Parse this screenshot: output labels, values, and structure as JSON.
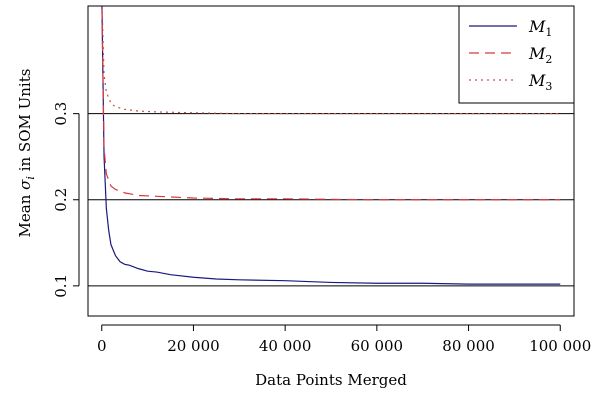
{
  "chart_data": {
    "type": "line",
    "title": "",
    "xlabel": "Data Points Merged",
    "ylabel": "Mean σ_i in SOM Units",
    "ylabel_parts": {
      "pre": "Mean ",
      "sym": "σ",
      "sub": "i",
      "post": " in SOM Units"
    },
    "xlim": [
      -3000,
      103000
    ],
    "ylim": [
      0.065,
      0.425
    ],
    "xticks": [
      0,
      20000,
      40000,
      60000,
      80000,
      100000
    ],
    "xtick_labels": [
      "0",
      "20 000",
      "40 000",
      "60 000",
      "80 000",
      "100 000"
    ],
    "yticks": [
      0.1,
      0.2,
      0.3
    ],
    "ytick_labels": [
      "0.1",
      "0.2",
      "0.3"
    ],
    "hlines": [
      0.1,
      0.2,
      0.3
    ],
    "grid": false,
    "legend_position": "top-right",
    "series": [
      {
        "name": "M1",
        "legend_symbol": "M",
        "legend_subscript": "1",
        "color": "#1a1a80",
        "dash": "solid",
        "x": [
          0,
          500,
          1000,
          1500,
          2000,
          3000,
          4000,
          5000,
          6000,
          8000,
          10000,
          12000,
          15000,
          20000,
          25000,
          30000,
          40000,
          50000,
          60000,
          70000,
          80000,
          90000,
          100000
        ],
        "y": [
          0.44,
          0.25,
          0.19,
          0.165,
          0.148,
          0.135,
          0.128,
          0.125,
          0.124,
          0.12,
          0.117,
          0.116,
          0.113,
          0.11,
          0.108,
          0.107,
          0.106,
          0.104,
          0.103,
          0.103,
          0.102,
          0.102,
          0.102
        ]
      },
      {
        "name": "M2",
        "legend_symbol": "M",
        "legend_subscript": "2",
        "color": "#d9383a",
        "dash": "10,6",
        "x": [
          0,
          500,
          1000,
          2000,
          3000,
          5000,
          8000,
          12000,
          20000,
          30000,
          40000,
          60000,
          80000,
          100000
        ],
        "y": [
          0.44,
          0.26,
          0.23,
          0.216,
          0.212,
          0.208,
          0.205,
          0.204,
          0.202,
          0.201,
          0.201,
          0.2,
          0.2,
          0.2
        ]
      },
      {
        "name": "M3",
        "legend_symbol": "M",
        "legend_subscript": "3",
        "color": "#c0504d",
        "dash": "2,4",
        "x": [
          0,
          500,
          1000,
          2000,
          3000,
          5000,
          8000,
          12000,
          20000,
          30000,
          40000,
          60000,
          80000,
          100000
        ],
        "y": [
          0.44,
          0.345,
          0.325,
          0.312,
          0.308,
          0.305,
          0.303,
          0.302,
          0.301,
          0.3,
          0.3,
          0.3,
          0.3,
          0.3
        ]
      }
    ]
  }
}
